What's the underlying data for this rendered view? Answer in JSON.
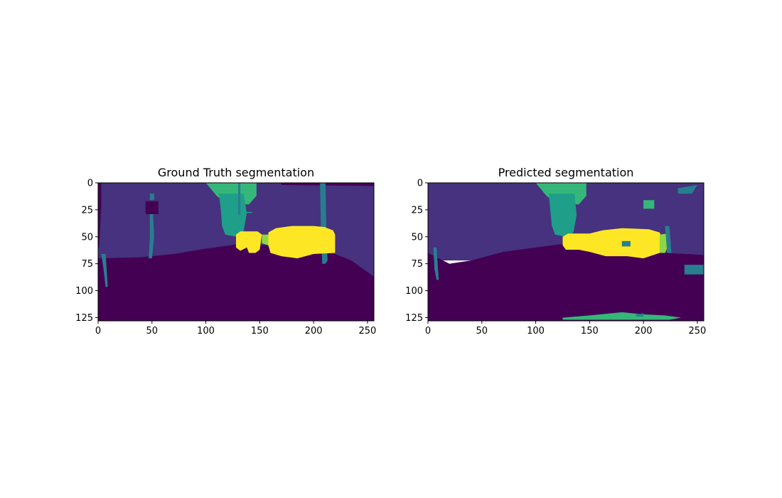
{
  "chart_data": [
    {
      "type": "heatmap",
      "title": "Ground Truth segmentation",
      "xlim": [
        0,
        256
      ],
      "ylim": [
        128,
        0
      ],
      "x_ticks": [
        0,
        50,
        100,
        150,
        200,
        250
      ],
      "y_ticks": [
        0,
        25,
        50,
        75,
        100,
        125
      ],
      "colormap": "viridis",
      "classes": {
        "ground": "#440154",
        "background": "#46327e",
        "pole": "#277f8e",
        "tree": "#1f9e89",
        "vegetation": "#35b779",
        "light": "#8fd744",
        "vehicle": "#fde725"
      },
      "regions": [
        {
          "cls": "background",
          "poly": [
            [
              0,
              0
            ],
            [
              256,
              0
            ],
            [
              256,
              87
            ],
            [
              0,
              87
            ]
          ]
        },
        {
          "cls": "ground",
          "poly": [
            [
              0,
              0
            ],
            [
              3,
              0
            ],
            [
              3,
              20
            ],
            [
              1,
              60
            ],
            [
              0,
              60
            ]
          ]
        },
        {
          "cls": "ground",
          "poly": [
            [
              170,
              0
            ],
            [
              256,
              0
            ],
            [
              256,
              3
            ],
            [
              170,
              2
            ]
          ]
        },
        {
          "cls": "ground",
          "poly": [
            [
              44,
              17
            ],
            [
              56,
              17
            ],
            [
              56,
              29
            ],
            [
              44,
              29
            ]
          ]
        },
        {
          "cls": "ground",
          "poly": [
            [
              0,
              70
            ],
            [
              40,
              69
            ],
            [
              70,
              66
            ],
            [
              100,
              61
            ],
            [
              130,
              57
            ],
            [
              160,
              58
            ],
            [
              190,
              60
            ],
            [
              220,
              66
            ],
            [
              235,
              72
            ],
            [
              256,
              87
            ],
            [
              256,
              128
            ],
            [
              0,
              128
            ]
          ]
        },
        {
          "cls": "vegetation",
          "poly": [
            [
              100,
              0
            ],
            [
              147,
              0
            ],
            [
              147,
              12
            ],
            [
              140,
              20
            ],
            [
              120,
              20
            ],
            [
              110,
              12
            ]
          ]
        },
        {
          "cls": "tree",
          "poly": [
            [
              112,
              10
            ],
            [
              135,
              10
            ],
            [
              138,
              28
            ],
            [
              135,
              45
            ],
            [
              128,
              50
            ],
            [
              118,
              48
            ],
            [
              115,
              40
            ],
            [
              114,
              26
            ]
          ]
        },
        {
          "cls": "tree",
          "poly": [
            [
              128,
              27
            ],
            [
              143,
              27
            ],
            [
              143,
              28
            ],
            [
              128,
              28
            ]
          ]
        },
        {
          "cls": "pole",
          "poly": [
            [
              48,
              10
            ],
            [
              52,
              10
            ],
            [
              52,
              16
            ],
            [
              48,
              16
            ]
          ]
        },
        {
          "cls": "pole",
          "poly": [
            [
              48,
              29
            ],
            [
              51,
              29
            ],
            [
              52,
              50
            ],
            [
              50,
              70
            ],
            [
              47,
              70
            ],
            [
              48,
              50
            ]
          ]
        },
        {
          "cls": "pole",
          "poly": [
            [
              3,
              66
            ],
            [
              7,
              66
            ],
            [
              9,
              96
            ],
            [
              7,
              97
            ],
            [
              5,
              80
            ]
          ]
        },
        {
          "cls": "pole",
          "poly": [
            [
              206,
              0
            ],
            [
              211,
              0
            ],
            [
              212,
              50
            ],
            [
              213,
              72
            ],
            [
              211,
              75
            ],
            [
              208,
              75
            ],
            [
              207,
              50
            ]
          ]
        },
        {
          "cls": "pole",
          "poly": [
            [
              130,
              0
            ],
            [
              132,
              0
            ],
            [
              132,
              30
            ],
            [
              130,
              30
            ]
          ]
        },
        {
          "cls": "vehicle",
          "poly": [
            [
              128,
              48
            ],
            [
              132,
              45
            ],
            [
              148,
              45
            ],
            [
              152,
              48
            ],
            [
              150,
              62
            ],
            [
              146,
              65
            ],
            [
              140,
              65
            ],
            [
              138,
              60
            ],
            [
              132,
              63
            ],
            [
              128,
              60
            ]
          ]
        },
        {
          "cls": "vehicle",
          "poly": [
            [
              158,
              46
            ],
            [
              165,
              42
            ],
            [
              180,
              40
            ],
            [
              200,
              40
            ],
            [
              210,
              41
            ],
            [
              218,
              44
            ],
            [
              220,
              48
            ],
            [
              220,
              65
            ],
            [
              200,
              66
            ],
            [
              185,
              70
            ],
            [
              170,
              68
            ],
            [
              160,
              65
            ],
            [
              158,
              58
            ]
          ]
        },
        {
          "cls": "light",
          "poly": [
            [
              152,
              48
            ],
            [
              158,
              48
            ],
            [
              158,
              58
            ],
            [
              152,
              56
            ]
          ]
        }
      ]
    },
    {
      "type": "heatmap",
      "title": "Predicted segmentation",
      "xlim": [
        0,
        256
      ],
      "ylim": [
        128,
        0
      ],
      "x_ticks": [
        0,
        50,
        100,
        150,
        200,
        250
      ],
      "y_ticks": [
        0,
        25,
        50,
        75,
        100,
        125
      ],
      "colormap": "viridis",
      "classes": {
        "ground": "#440154",
        "background": "#46327e",
        "pole": "#277f8e",
        "tree": "#1f9e89",
        "vegetation": "#35b779",
        "light": "#8fd744",
        "vehicle": "#fde725"
      },
      "regions": [
        {
          "cls": "background",
          "poly": [
            [
              0,
              0
            ],
            [
              256,
              0
            ],
            [
              256,
              72
            ],
            [
              0,
              72
            ]
          ]
        },
        {
          "cls": "ground",
          "poly": [
            [
              0,
              65
            ],
            [
              10,
              70
            ],
            [
              20,
              75
            ],
            [
              40,
              72
            ],
            [
              70,
              64
            ],
            [
              100,
              60
            ],
            [
              130,
              56
            ],
            [
              160,
              58
            ],
            [
              190,
              62
            ],
            [
              220,
              65
            ],
            [
              240,
              66
            ],
            [
              256,
              67
            ],
            [
              256,
              128
            ],
            [
              0,
              128
            ]
          ]
        },
        {
          "cls": "vegetation",
          "poly": [
            [
              100,
              0
            ],
            [
              147,
              0
            ],
            [
              147,
              12
            ],
            [
              140,
              20
            ],
            [
              120,
              20
            ],
            [
              110,
              12
            ]
          ]
        },
        {
          "cls": "tree",
          "poly": [
            [
              112,
              10
            ],
            [
              136,
              10
            ],
            [
              138,
              30
            ],
            [
              135,
              46
            ],
            [
              128,
              50
            ],
            [
              118,
              48
            ],
            [
              115,
              40
            ]
          ]
        },
        {
          "cls": "vehicle",
          "poly": [
            [
              125,
              50
            ],
            [
              130,
              47
            ],
            [
              150,
              47
            ],
            [
              162,
              44
            ],
            [
              180,
              42
            ],
            [
              205,
              43
            ],
            [
              215,
              46
            ],
            [
              218,
              54
            ],
            [
              215,
              65
            ],
            [
              200,
              70
            ],
            [
              185,
              68
            ],
            [
              165,
              68
            ],
            [
              150,
              64
            ],
            [
              140,
              62
            ],
            [
              128,
              62
            ],
            [
              125,
              58
            ]
          ]
        },
        {
          "cls": "pole",
          "poly": [
            [
              180,
              54
            ],
            [
              188,
              54
            ],
            [
              188,
              59
            ],
            [
              180,
              59
            ]
          ]
        },
        {
          "cls": "light",
          "poly": [
            [
              215,
              48
            ],
            [
              222,
              47
            ],
            [
              224,
              56
            ],
            [
              220,
              65
            ],
            [
              215,
              65
            ]
          ]
        },
        {
          "cls": "vegetation",
          "poly": [
            [
              200,
              16
            ],
            [
              210,
              16
            ],
            [
              210,
              24
            ],
            [
              200,
              24
            ]
          ]
        },
        {
          "cls": "vegetation",
          "poly": [
            [
              170,
              121
            ],
            [
              180,
              120
            ],
            [
              200,
              122
            ],
            [
              220,
              123
            ],
            [
              235,
              125
            ],
            [
              224,
              127
            ],
            [
              180,
              127
            ],
            [
              150,
              127
            ],
            [
              125,
              127
            ],
            [
              125,
              125
            ],
            [
              150,
              123
            ]
          ]
        },
        {
          "cls": "pole",
          "poly": [
            [
              5,
              60
            ],
            [
              8,
              60
            ],
            [
              10,
              90
            ],
            [
              8,
              90
            ],
            [
              6,
              80
            ]
          ]
        },
        {
          "cls": "pole",
          "poly": [
            [
              220,
              40
            ],
            [
              224,
              40
            ],
            [
              226,
              65
            ],
            [
              222,
              65
            ]
          ]
        },
        {
          "cls": "pole",
          "poly": [
            [
              232,
              5
            ],
            [
              250,
              2
            ],
            [
              245,
              10
            ],
            [
              232,
              10
            ]
          ]
        },
        {
          "cls": "pole",
          "poly": [
            [
              193,
              122
            ],
            [
              200,
              121
            ],
            [
              200,
              124
            ],
            [
              193,
              124
            ]
          ]
        },
        {
          "cls": "pole",
          "poly": [
            [
              238,
              76
            ],
            [
              256,
              76
            ],
            [
              256,
              85
            ],
            [
              238,
              85
            ]
          ]
        }
      ]
    }
  ]
}
